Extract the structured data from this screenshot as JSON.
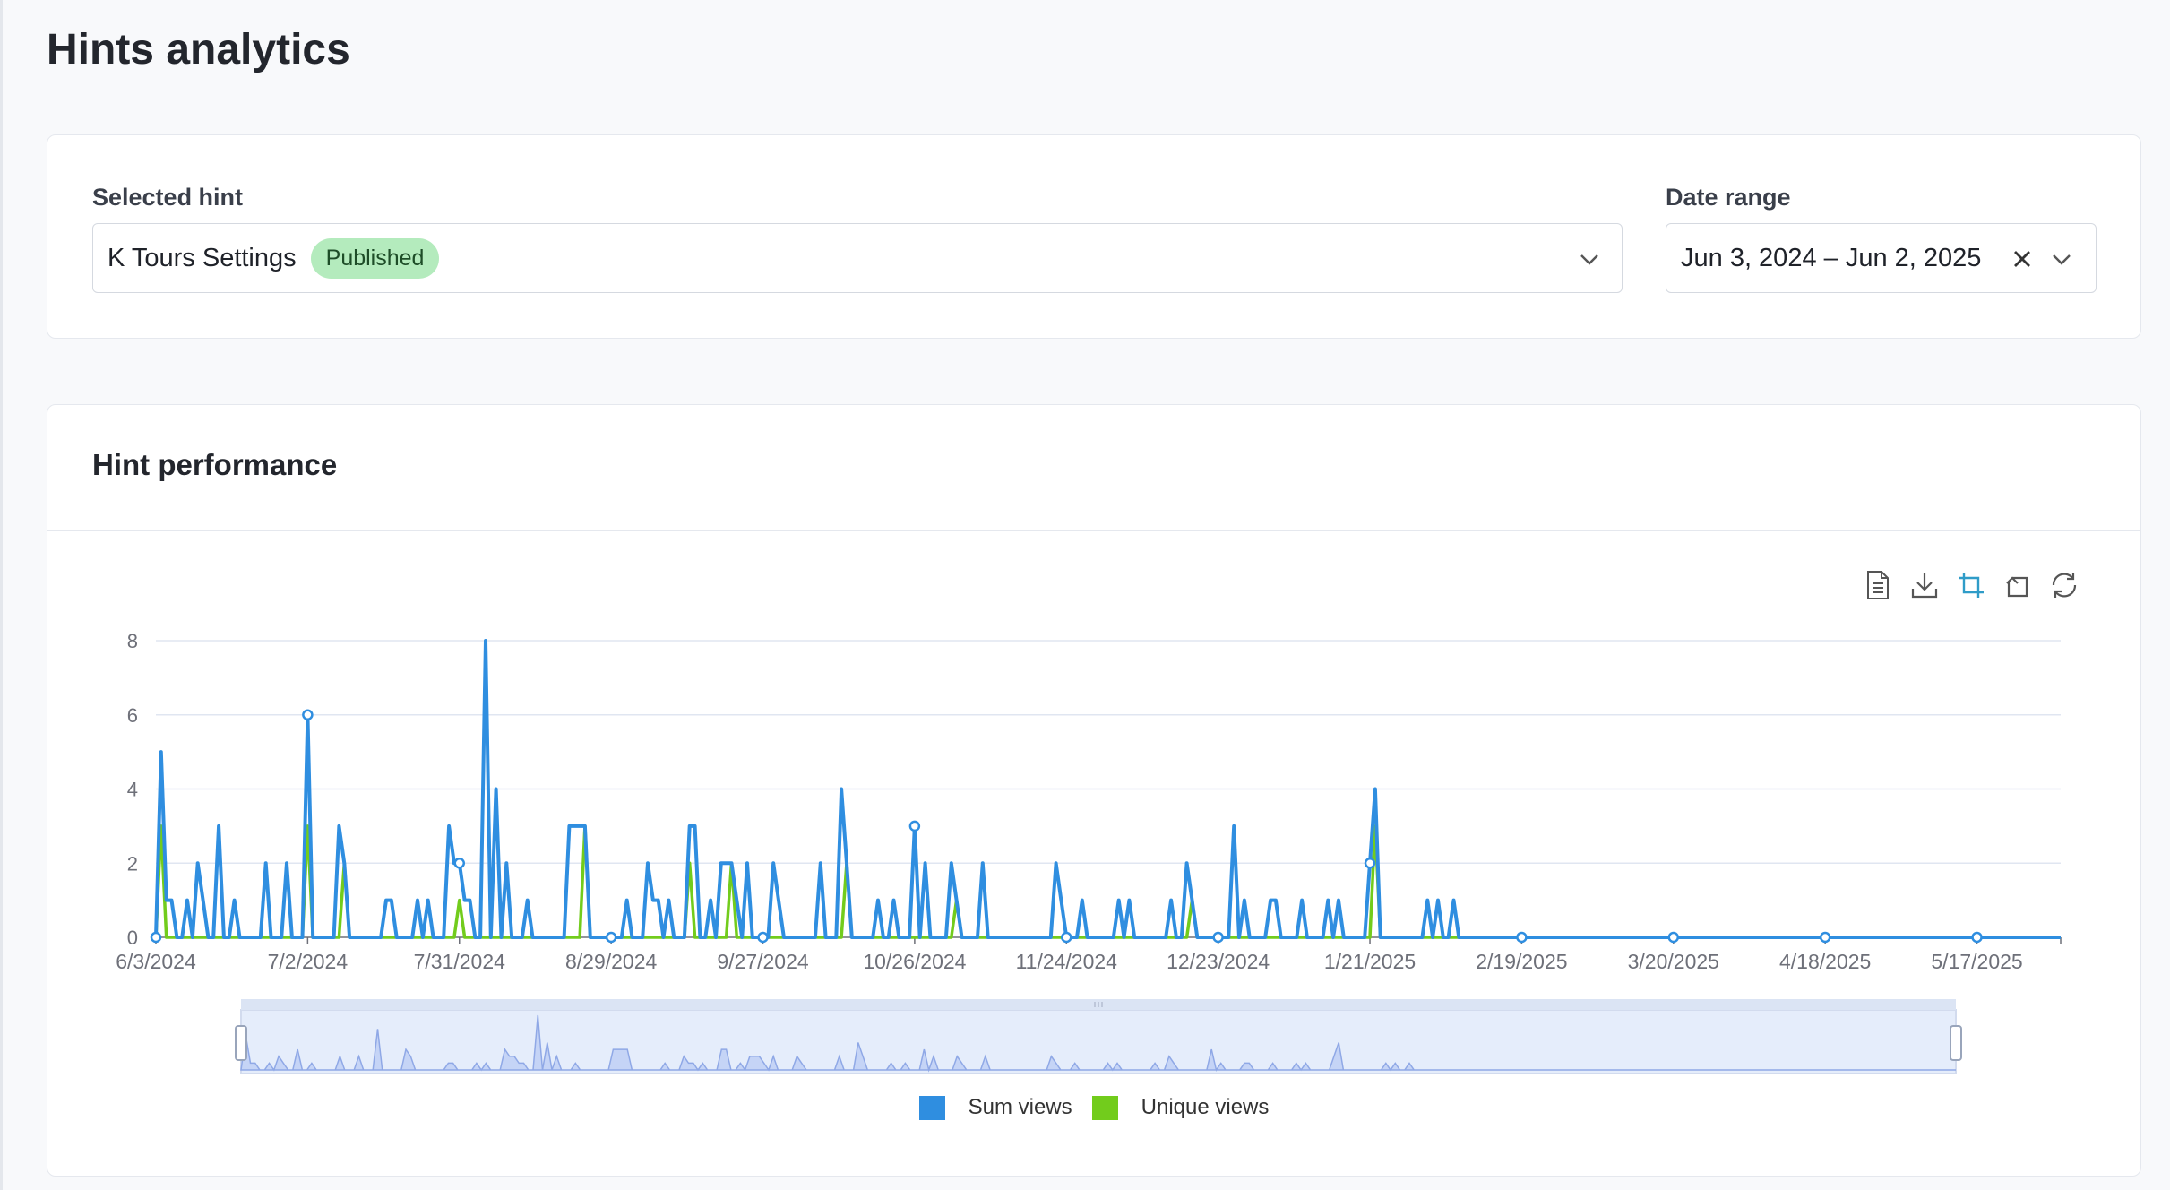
{
  "page": {
    "title": "Hints analytics"
  },
  "filters": {
    "hint_label": "Selected hint",
    "hint_value": "K Tours Settings",
    "hint_status": "Published",
    "date_label": "Date range",
    "date_value": "Jun 3, 2024 – Jun 2, 2025"
  },
  "performance": {
    "title": "Hint performance",
    "toolbox": [
      "data-view-icon",
      "download-icon",
      "zoom-select-icon",
      "zoom-reset-icon",
      "restore-icon"
    ]
  },
  "colors": {
    "sum": "#2f8ee0",
    "unique": "#72cc1c"
  },
  "chart_data": {
    "type": "line",
    "title": "",
    "xlabel": "",
    "ylabel": "",
    "ylim": [
      0,
      8
    ],
    "yticks": [
      0,
      2,
      4,
      6,
      8
    ],
    "xtick_labels": [
      "6/3/2024",
      "7/2/2024",
      "7/31/2024",
      "8/29/2024",
      "9/27/2024",
      "10/26/2024",
      "11/24/2024",
      "12/23/2024",
      "1/21/2025",
      "2/19/2025",
      "3/20/2025",
      "4/18/2025",
      "5/17/2025"
    ],
    "x_start": "2024-06-03",
    "x_end": "2025-06-02",
    "grid": true,
    "legend_position": "bottom",
    "series": [
      {
        "name": "Sum views",
        "color": "#2f8ee0",
        "points": [
          [
            "2024-06-04",
            5
          ],
          [
            "2024-06-05",
            1
          ],
          [
            "2024-06-06",
            1
          ],
          [
            "2024-06-09",
            1
          ],
          [
            "2024-06-11",
            2
          ],
          [
            "2024-06-12",
            1
          ],
          [
            "2024-06-15",
            3
          ],
          [
            "2024-06-18",
            1
          ],
          [
            "2024-06-24",
            2
          ],
          [
            "2024-06-28",
            2
          ],
          [
            "2024-07-02",
            6
          ],
          [
            "2024-07-08",
            3
          ],
          [
            "2024-07-09",
            2
          ],
          [
            "2024-07-17",
            1
          ],
          [
            "2024-07-18",
            1
          ],
          [
            "2024-07-23",
            1
          ],
          [
            "2024-07-25",
            1
          ],
          [
            "2024-07-29",
            3
          ],
          [
            "2024-07-30",
            2
          ],
          [
            "2024-07-31",
            2
          ],
          [
            "2024-08-01",
            1
          ],
          [
            "2024-08-02",
            1
          ],
          [
            "2024-08-05",
            8
          ],
          [
            "2024-08-07",
            4
          ],
          [
            "2024-08-09",
            2
          ],
          [
            "2024-08-13",
            1
          ],
          [
            "2024-08-21",
            3
          ],
          [
            "2024-08-22",
            3
          ],
          [
            "2024-08-23",
            3
          ],
          [
            "2024-08-24",
            3
          ],
          [
            "2024-09-01",
            1
          ],
          [
            "2024-09-05",
            2
          ],
          [
            "2024-09-06",
            1
          ],
          [
            "2024-09-07",
            1
          ],
          [
            "2024-09-09",
            1
          ],
          [
            "2024-09-13",
            3
          ],
          [
            "2024-09-14",
            3
          ],
          [
            "2024-09-17",
            1
          ],
          [
            "2024-09-19",
            2
          ],
          [
            "2024-09-20",
            2
          ],
          [
            "2024-09-21",
            2
          ],
          [
            "2024-09-22",
            1
          ],
          [
            "2024-09-24",
            2
          ],
          [
            "2024-09-29",
            2
          ],
          [
            "2024-09-30",
            1
          ],
          [
            "2024-10-08",
            2
          ],
          [
            "2024-10-12",
            4
          ],
          [
            "2024-10-13",
            2
          ],
          [
            "2024-10-19",
            1
          ],
          [
            "2024-10-22",
            1
          ],
          [
            "2024-10-26",
            3
          ],
          [
            "2024-10-28",
            2
          ],
          [
            "2024-11-02",
            2
          ],
          [
            "2024-11-03",
            1
          ],
          [
            "2024-11-08",
            2
          ],
          [
            "2024-11-22",
            2
          ],
          [
            "2024-11-23",
            1
          ],
          [
            "2024-11-27",
            1
          ],
          [
            "2024-12-04",
            1
          ],
          [
            "2024-12-06",
            1
          ],
          [
            "2024-12-14",
            1
          ],
          [
            "2024-12-17",
            2
          ],
          [
            "2024-12-18",
            1
          ],
          [
            "2024-12-26",
            3
          ],
          [
            "2024-12-28",
            1
          ],
          [
            "2025-01-02",
            1
          ],
          [
            "2025-01-03",
            1
          ],
          [
            "2025-01-08",
            1
          ],
          [
            "2025-01-13",
            1
          ],
          [
            "2025-01-15",
            1
          ],
          [
            "2025-01-21",
            2
          ],
          [
            "2025-01-22",
            4
          ],
          [
            "2025-02-01",
            1
          ],
          [
            "2025-02-03",
            1
          ],
          [
            "2025-02-06",
            1
          ]
        ]
      },
      {
        "name": "Unique views",
        "color": "#72cc1c",
        "points": [
          [
            "2024-06-04",
            3
          ],
          [
            "2024-07-02",
            3
          ],
          [
            "2024-07-09",
            2
          ],
          [
            "2024-07-31",
            1
          ],
          [
            "2024-08-24",
            3
          ],
          [
            "2024-09-13",
            2
          ],
          [
            "2024-09-21",
            2
          ],
          [
            "2024-10-13",
            2
          ],
          [
            "2024-11-03",
            1
          ],
          [
            "2024-12-18",
            1
          ],
          [
            "2025-01-22",
            3
          ]
        ]
      }
    ]
  },
  "legend": {
    "sum": "Sum views",
    "unique": "Unique views"
  }
}
